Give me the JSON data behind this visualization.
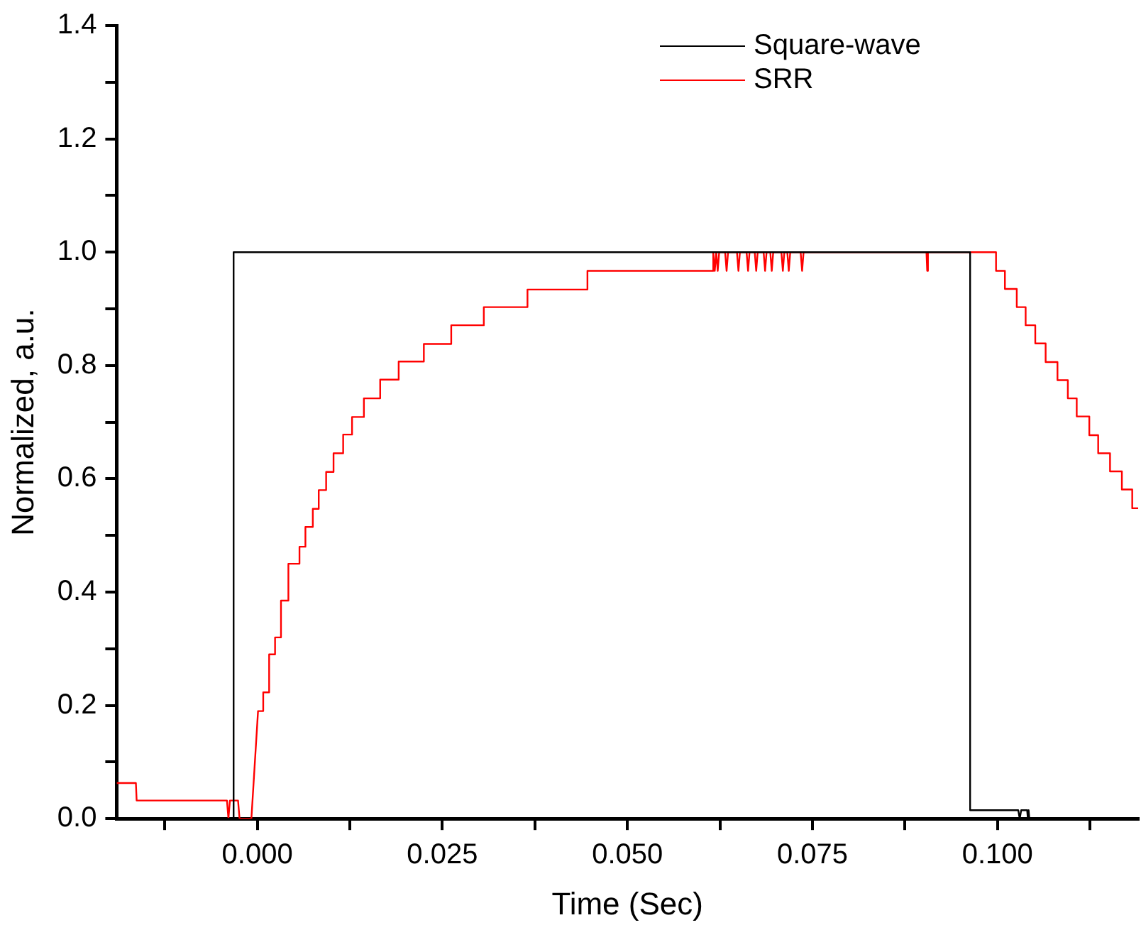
{
  "chart_data": {
    "type": "line",
    "xlabel": "Time (Sec)",
    "ylabel": "Normalized, a.u.",
    "xlim": [
      -0.019,
      0.119
    ],
    "xticks": [
      {
        "value": -0.0125,
        "label": null
      },
      {
        "value": 0,
        "label": "0.000"
      },
      {
        "value": 0.0125,
        "label": null
      },
      {
        "value": 0.025,
        "label": "0.025"
      },
      {
        "value": 0.0375,
        "label": null
      },
      {
        "value": 0.05,
        "label": "0.050"
      },
      {
        "value": 0.0625,
        "label": null
      },
      {
        "value": 0.075,
        "label": "0.075"
      },
      {
        "value": 0.0875,
        "label": null
      },
      {
        "value": 0.1,
        "label": "0.100"
      },
      {
        "value": 0.1125,
        "label": null
      }
    ],
    "ylim": [
      0,
      1.4
    ],
    "yticks": [
      {
        "value": 0,
        "label": "0.0"
      },
      {
        "value": 0.1,
        "label": null
      },
      {
        "value": 0.2,
        "label": "0.2"
      },
      {
        "value": 0.3,
        "label": null
      },
      {
        "value": 0.4,
        "label": "0.4"
      },
      {
        "value": 0.5,
        "label": null
      },
      {
        "value": 0.6,
        "label": "0.6"
      },
      {
        "value": 0.7,
        "label": null
      },
      {
        "value": 0.8,
        "label": "0.8"
      },
      {
        "value": 0.9,
        "label": null
      },
      {
        "value": 1.0,
        "label": "1.0"
      },
      {
        "value": 1.1,
        "label": null
      },
      {
        "value": 1.2,
        "label": "1.2"
      },
      {
        "value": 1.3,
        "label": null
      },
      {
        "value": 1.4,
        "label": "1.4"
      }
    ],
    "grid": false,
    "legend": "top right",
    "marker": "none",
    "line_style": "solid",
    "series": [
      {
        "name": "Square-wave",
        "color": "#000000",
        "x": [
          -0.019,
          -0.0032,
          -0.0032,
          0.0963,
          0.0963,
          0.1028,
          0.103,
          0.1032,
          0.104,
          0.1041,
          0.1042,
          0.1043,
          0.119
        ],
        "values": [
          0,
          0,
          1.0,
          1.0,
          0.015,
          0.015,
          0,
          0.015,
          0.015,
          0,
          0.015,
          0,
          0
        ]
      },
      {
        "name": "SRR",
        "color": "#ff0000",
        "x": [
          -0.019,
          -0.0164,
          -0.0163,
          -0.0041,
          -0.0039,
          -0.0037,
          -0.0026,
          -0.0024,
          -0.0008,
          0.0001,
          0.0008,
          0.0008,
          0.0016,
          0.0016,
          0.0024,
          0.0024,
          0.0032,
          0.0032,
          0.0042,
          0.0042,
          0.0057,
          0.0057,
          0.0065,
          0.0065,
          0.0075,
          0.0075,
          0.0083,
          0.0083,
          0.0093,
          0.0093,
          0.0103,
          0.0103,
          0.0116,
          0.0116,
          0.0128,
          0.0128,
          0.0144,
          0.0144,
          0.0166,
          0.0166,
          0.0191,
          0.0191,
          0.0225,
          0.0225,
          0.0262,
          0.0262,
          0.0306,
          0.0306,
          0.0365,
          0.0365,
          0.0446,
          0.0446,
          0.0616,
          0.0616,
          0.0618,
          0.062,
          0.0622,
          0.0624,
          0.0632,
          0.0634,
          0.0636,
          0.0648,
          0.065,
          0.0652,
          0.0661,
          0.0663,
          0.0665,
          0.0672,
          0.0674,
          0.0676,
          0.0684,
          0.0686,
          0.0688,
          0.0693,
          0.0695,
          0.0697,
          0.0708,
          0.071,
          0.0712,
          0.0716,
          0.0718,
          0.072,
          0.0734,
          0.0736,
          0.0738,
          0.0904,
          0.0905,
          0.0906,
          0.0998,
          0.0998,
          0.101,
          0.101,
          0.1026,
          0.1026,
          0.1038,
          0.1038,
          0.1051,
          0.1051,
          0.1065,
          0.1065,
          0.1081,
          0.1081,
          0.1095,
          0.1095,
          0.1107,
          0.1107,
          0.1124,
          0.1124,
          0.1136,
          0.1136,
          0.1152,
          0.1152,
          0.1168,
          0.1168,
          0.1182,
          0.1182,
          0.119
        ],
        "values": [
          0.063,
          0.063,
          0.032,
          0.032,
          0,
          0.032,
          0.032,
          0,
          0,
          0.19,
          0.19,
          0.223,
          0.223,
          0.29,
          0.29,
          0.32,
          0.32,
          0.385,
          0.385,
          0.45,
          0.45,
          0.48,
          0.48,
          0.515,
          0.515,
          0.547,
          0.547,
          0.58,
          0.58,
          0.612,
          0.612,
          0.645,
          0.645,
          0.678,
          0.678,
          0.709,
          0.709,
          0.742,
          0.742,
          0.775,
          0.775,
          0.807,
          0.807,
          0.838,
          0.838,
          0.871,
          0.871,
          0.903,
          0.903,
          0.934,
          0.934,
          0.967,
          0.967,
          1.0,
          0.967,
          1.0,
          0.967,
          1.0,
          1.0,
          0.967,
          1.0,
          1.0,
          0.967,
          1.0,
          1.0,
          0.967,
          1.0,
          1.0,
          0.967,
          1.0,
          1.0,
          0.967,
          1.0,
          1.0,
          0.967,
          1.0,
          1.0,
          0.967,
          1.0,
          1.0,
          0.967,
          1.0,
          1.0,
          0.967,
          1.0,
          1.0,
          0.967,
          1.0,
          1.0,
          0.967,
          0.967,
          0.935,
          0.935,
          0.903,
          0.903,
          0.871,
          0.871,
          0.839,
          0.839,
          0.806,
          0.806,
          0.774,
          0.774,
          0.742,
          0.742,
          0.71,
          0.71,
          0.677,
          0.677,
          0.645,
          0.645,
          0.613,
          0.613,
          0.581,
          0.581,
          0.548,
          0.548
        ]
      }
    ]
  }
}
